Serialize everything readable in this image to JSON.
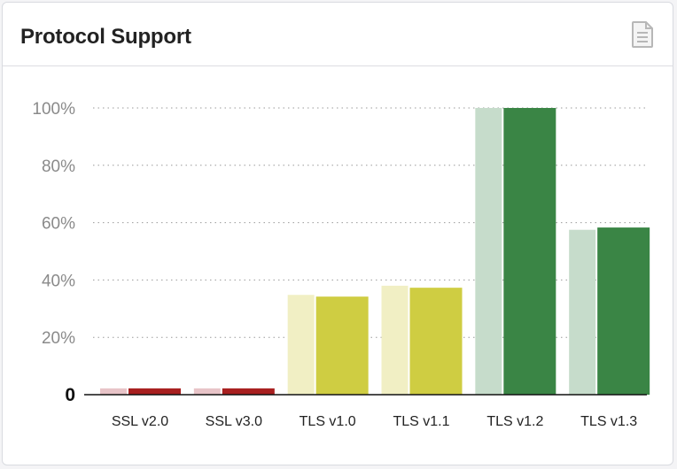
{
  "card": {
    "title": "Protocol Support",
    "icon": "document-icon"
  },
  "chart_data": {
    "type": "bar",
    "title": "Protocol Support",
    "xlabel": "",
    "ylabel": "",
    "ylim": [
      0,
      100
    ],
    "yticks": [
      {
        "value": 0,
        "label": "0"
      },
      {
        "value": 20,
        "label": "20%"
      },
      {
        "value": 40,
        "label": "40%"
      },
      {
        "value": 60,
        "label": "60%"
      },
      {
        "value": 80,
        "label": "80%"
      },
      {
        "value": 100,
        "label": "100%"
      }
    ],
    "grid": true,
    "categories": [
      "SSL v2.0",
      "SSL v3.0",
      "TLS v1.0",
      "TLS v1.1",
      "TLS v1.2",
      "TLS v1.3"
    ],
    "series": [
      {
        "values": [
          2.2,
          2.2,
          34.8,
          38.0,
          100,
          57.5
        ]
      },
      {
        "values": [
          2.2,
          2.2,
          34.2,
          37.3,
          100,
          58.3
        ]
      }
    ],
    "colors": {
      "back": [
        "#e8c4c8",
        "#e8c4c8",
        "#f1efc4",
        "#f1efc4",
        "#c6dccb",
        "#c6dccb"
      ],
      "front": [
        "#a82020",
        "#a82020",
        "#cfcd42",
        "#cfcd42",
        "#3a8545",
        "#3a8545"
      ]
    }
  }
}
